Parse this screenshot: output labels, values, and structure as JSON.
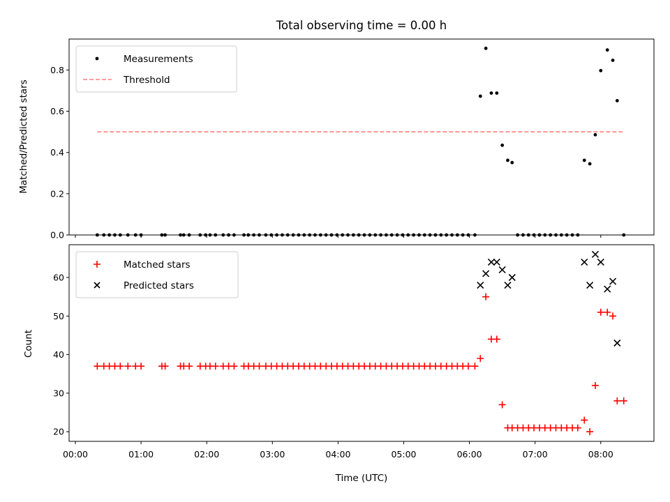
{
  "chart_data": [
    {
      "type": "scatter",
      "title": "Total observing time = 0.00 h",
      "xlabel": "",
      "ylabel": "Matched/Predicted stars",
      "ylim": [
        0,
        0.95
      ],
      "yticks": [
        "0.0",
        "0.2",
        "0.4",
        "0.6",
        "0.8"
      ],
      "ytick_values": [
        0,
        0.2,
        0.4,
        0.6,
        0.8
      ],
      "legend_position": "top-left",
      "legend": [
        "Measurements",
        "Threshold"
      ],
      "series": [
        {
          "name": "Measurements",
          "marker": "dot",
          "color": "#000000",
          "points": [
            [
              "00:20",
              0
            ],
            [
              "00:26",
              0
            ],
            [
              "00:31",
              0
            ],
            [
              "00:36",
              0
            ],
            [
              "00:41",
              0
            ],
            [
              "00:48",
              0
            ],
            [
              "00:55",
              0
            ],
            [
              "01:00",
              0
            ],
            [
              "01:19",
              0
            ],
            [
              "01:22",
              0
            ],
            [
              "01:36",
              0
            ],
            [
              "01:39",
              0
            ],
            [
              "01:44",
              0
            ],
            [
              "01:54",
              0
            ],
            [
              "01:59",
              0
            ],
            [
              "02:03",
              0
            ],
            [
              "02:08",
              0
            ],
            [
              "02:15",
              0
            ],
            [
              "02:20",
              0
            ],
            [
              "02:25",
              0
            ],
            [
              "02:34",
              0
            ],
            [
              "02:38",
              0
            ],
            [
              "02:43",
              0
            ],
            [
              "02:48",
              0
            ],
            [
              "02:54",
              0
            ],
            [
              "02:59",
              0
            ],
            [
              "03:04",
              0
            ],
            [
              "03:09",
              0
            ],
            [
              "03:14",
              0
            ],
            [
              "03:19",
              0
            ],
            [
              "03:24",
              0
            ],
            [
              "03:29",
              0
            ],
            [
              "03:34",
              0
            ],
            [
              "03:39",
              0
            ],
            [
              "03:44",
              0
            ],
            [
              "03:49",
              0
            ],
            [
              "03:54",
              0
            ],
            [
              "03:59",
              0
            ],
            [
              "04:04",
              0
            ],
            [
              "04:09",
              0
            ],
            [
              "04:14",
              0
            ],
            [
              "04:19",
              0
            ],
            [
              "04:24",
              0
            ],
            [
              "04:29",
              0
            ],
            [
              "04:34",
              0
            ],
            [
              "04:39",
              0
            ],
            [
              "04:44",
              0
            ],
            [
              "04:49",
              0
            ],
            [
              "04:54",
              0
            ],
            [
              "04:59",
              0
            ],
            [
              "05:04",
              0
            ],
            [
              "05:09",
              0
            ],
            [
              "05:14",
              0
            ],
            [
              "05:19",
              0
            ],
            [
              "05:24",
              0
            ],
            [
              "05:29",
              0
            ],
            [
              "05:34",
              0
            ],
            [
              "05:39",
              0
            ],
            [
              "05:44",
              0
            ],
            [
              "05:49",
              0
            ],
            [
              "05:54",
              0
            ],
            [
              "05:59",
              0
            ],
            [
              "06:05",
              0
            ],
            [
              "06:10",
              0.673
            ],
            [
              "06:15",
              0.905
            ],
            [
              "06:20",
              0.688
            ],
            [
              "06:25",
              0.688
            ],
            [
              "06:30",
              0.435
            ],
            [
              "06:35",
              0.362
            ],
            [
              "06:39",
              0.351
            ],
            [
              "06:44",
              0
            ],
            [
              "06:49",
              0
            ],
            [
              "06:54",
              0
            ],
            [
              "06:59",
              0
            ],
            [
              "07:04",
              0
            ],
            [
              "07:09",
              0
            ],
            [
              "07:14",
              0
            ],
            [
              "07:19",
              0
            ],
            [
              "07:24",
              0
            ],
            [
              "07:29",
              0
            ],
            [
              "07:34",
              0
            ],
            [
              "07:39",
              0
            ],
            [
              "07:45",
              0.362
            ],
            [
              "07:50",
              0.345
            ],
            [
              "07:55",
              0.486
            ],
            [
              "08:00",
              0.797
            ],
            [
              "08:06",
              0.897
            ],
            [
              "08:11",
              0.847
            ],
            [
              "08:15",
              0.651
            ],
            [
              "08:21",
              0
            ]
          ]
        },
        {
          "name": "Threshold",
          "marker": "dashed-line",
          "color": "#ff7f7f",
          "x": [
            "00:20",
            "08:21"
          ],
          "y": [
            0.5,
            0.5
          ]
        }
      ]
    },
    {
      "type": "scatter",
      "title": "",
      "xlabel": "Time (UTC)",
      "ylabel": "Count",
      "ylim": [
        17.5,
        68.5
      ],
      "xlim": [
        "00:00",
        "08:48"
      ],
      "xticks": [
        "00:00",
        "01:00",
        "02:00",
        "03:00",
        "04:00",
        "05:00",
        "06:00",
        "07:00",
        "08:00"
      ],
      "yticks": [
        "20",
        "30",
        "40",
        "50",
        "60"
      ],
      "ytick_values": [
        20,
        30,
        40,
        50,
        60
      ],
      "legend_position": "top-left",
      "legend": [
        "Matched stars",
        "Predicted stars"
      ],
      "series": [
        {
          "name": "Matched stars",
          "marker": "plus",
          "color": "#ff0000",
          "points": [
            [
              "00:20",
              37
            ],
            [
              "00:26",
              37
            ],
            [
              "00:31",
              37
            ],
            [
              "00:36",
              37
            ],
            [
              "00:41",
              37
            ],
            [
              "00:48",
              37
            ],
            [
              "00:55",
              37
            ],
            [
              "01:00",
              37
            ],
            [
              "01:19",
              37
            ],
            [
              "01:22",
              37
            ],
            [
              "01:36",
              37
            ],
            [
              "01:39",
              37
            ],
            [
              "01:44",
              37
            ],
            [
              "01:54",
              37
            ],
            [
              "01:59",
              37
            ],
            [
              "02:03",
              37
            ],
            [
              "02:08",
              37
            ],
            [
              "02:15",
              37
            ],
            [
              "02:20",
              37
            ],
            [
              "02:25",
              37
            ],
            [
              "02:34",
              37
            ],
            [
              "02:38",
              37
            ],
            [
              "02:43",
              37
            ],
            [
              "02:48",
              37
            ],
            [
              "02:54",
              37
            ],
            [
              "02:59",
              37
            ],
            [
              "03:04",
              37
            ],
            [
              "03:09",
              37
            ],
            [
              "03:14",
              37
            ],
            [
              "03:19",
              37
            ],
            [
              "03:24",
              37
            ],
            [
              "03:29",
              37
            ],
            [
              "03:34",
              37
            ],
            [
              "03:39",
              37
            ],
            [
              "03:44",
              37
            ],
            [
              "03:49",
              37
            ],
            [
              "03:54",
              37
            ],
            [
              "03:59",
              37
            ],
            [
              "04:04",
              37
            ],
            [
              "04:09",
              37
            ],
            [
              "04:14",
              37
            ],
            [
              "04:19",
              37
            ],
            [
              "04:24",
              37
            ],
            [
              "04:29",
              37
            ],
            [
              "04:34",
              37
            ],
            [
              "04:39",
              37
            ],
            [
              "04:44",
              37
            ],
            [
              "04:49",
              37
            ],
            [
              "04:54",
              37
            ],
            [
              "04:59",
              37
            ],
            [
              "05:04",
              37
            ],
            [
              "05:09",
              37
            ],
            [
              "05:14",
              37
            ],
            [
              "05:19",
              37
            ],
            [
              "05:24",
              37
            ],
            [
              "05:29",
              37
            ],
            [
              "05:34",
              37
            ],
            [
              "05:39",
              37
            ],
            [
              "05:44",
              37
            ],
            [
              "05:49",
              37
            ],
            [
              "05:54",
              37
            ],
            [
              "05:59",
              37
            ],
            [
              "06:05",
              37
            ],
            [
              "06:10",
              39
            ],
            [
              "06:15",
              55
            ],
            [
              "06:20",
              44
            ],
            [
              "06:25",
              44
            ],
            [
              "06:30",
              27
            ],
            [
              "06:35",
              21
            ],
            [
              "06:39",
              21
            ],
            [
              "06:44",
              21
            ],
            [
              "06:49",
              21
            ],
            [
              "06:54",
              21
            ],
            [
              "06:59",
              21
            ],
            [
              "07:04",
              21
            ],
            [
              "07:09",
              21
            ],
            [
              "07:14",
              21
            ],
            [
              "07:19",
              21
            ],
            [
              "07:24",
              21
            ],
            [
              "07:29",
              21
            ],
            [
              "07:34",
              21
            ],
            [
              "07:39",
              21
            ],
            [
              "07:45",
              23
            ],
            [
              "07:50",
              20
            ],
            [
              "07:55",
              32
            ],
            [
              "08:00",
              51
            ],
            [
              "08:06",
              51
            ],
            [
              "08:11",
              50
            ],
            [
              "08:15",
              28
            ],
            [
              "08:21",
              28
            ]
          ]
        },
        {
          "name": "Predicted stars",
          "marker": "x",
          "color": "#000000",
          "points": [
            [
              "06:10",
              58
            ],
            [
              "06:15",
              61
            ],
            [
              "06:20",
              64
            ],
            [
              "06:25",
              64
            ],
            [
              "06:30",
              62
            ],
            [
              "06:35",
              58
            ],
            [
              "06:39",
              60
            ],
            [
              "07:45",
              64
            ],
            [
              "07:50",
              58
            ],
            [
              "07:55",
              66
            ],
            [
              "08:00",
              64
            ],
            [
              "08:06",
              57
            ],
            [
              "08:11",
              59
            ],
            [
              "08:15",
              43
            ]
          ]
        }
      ]
    }
  ]
}
